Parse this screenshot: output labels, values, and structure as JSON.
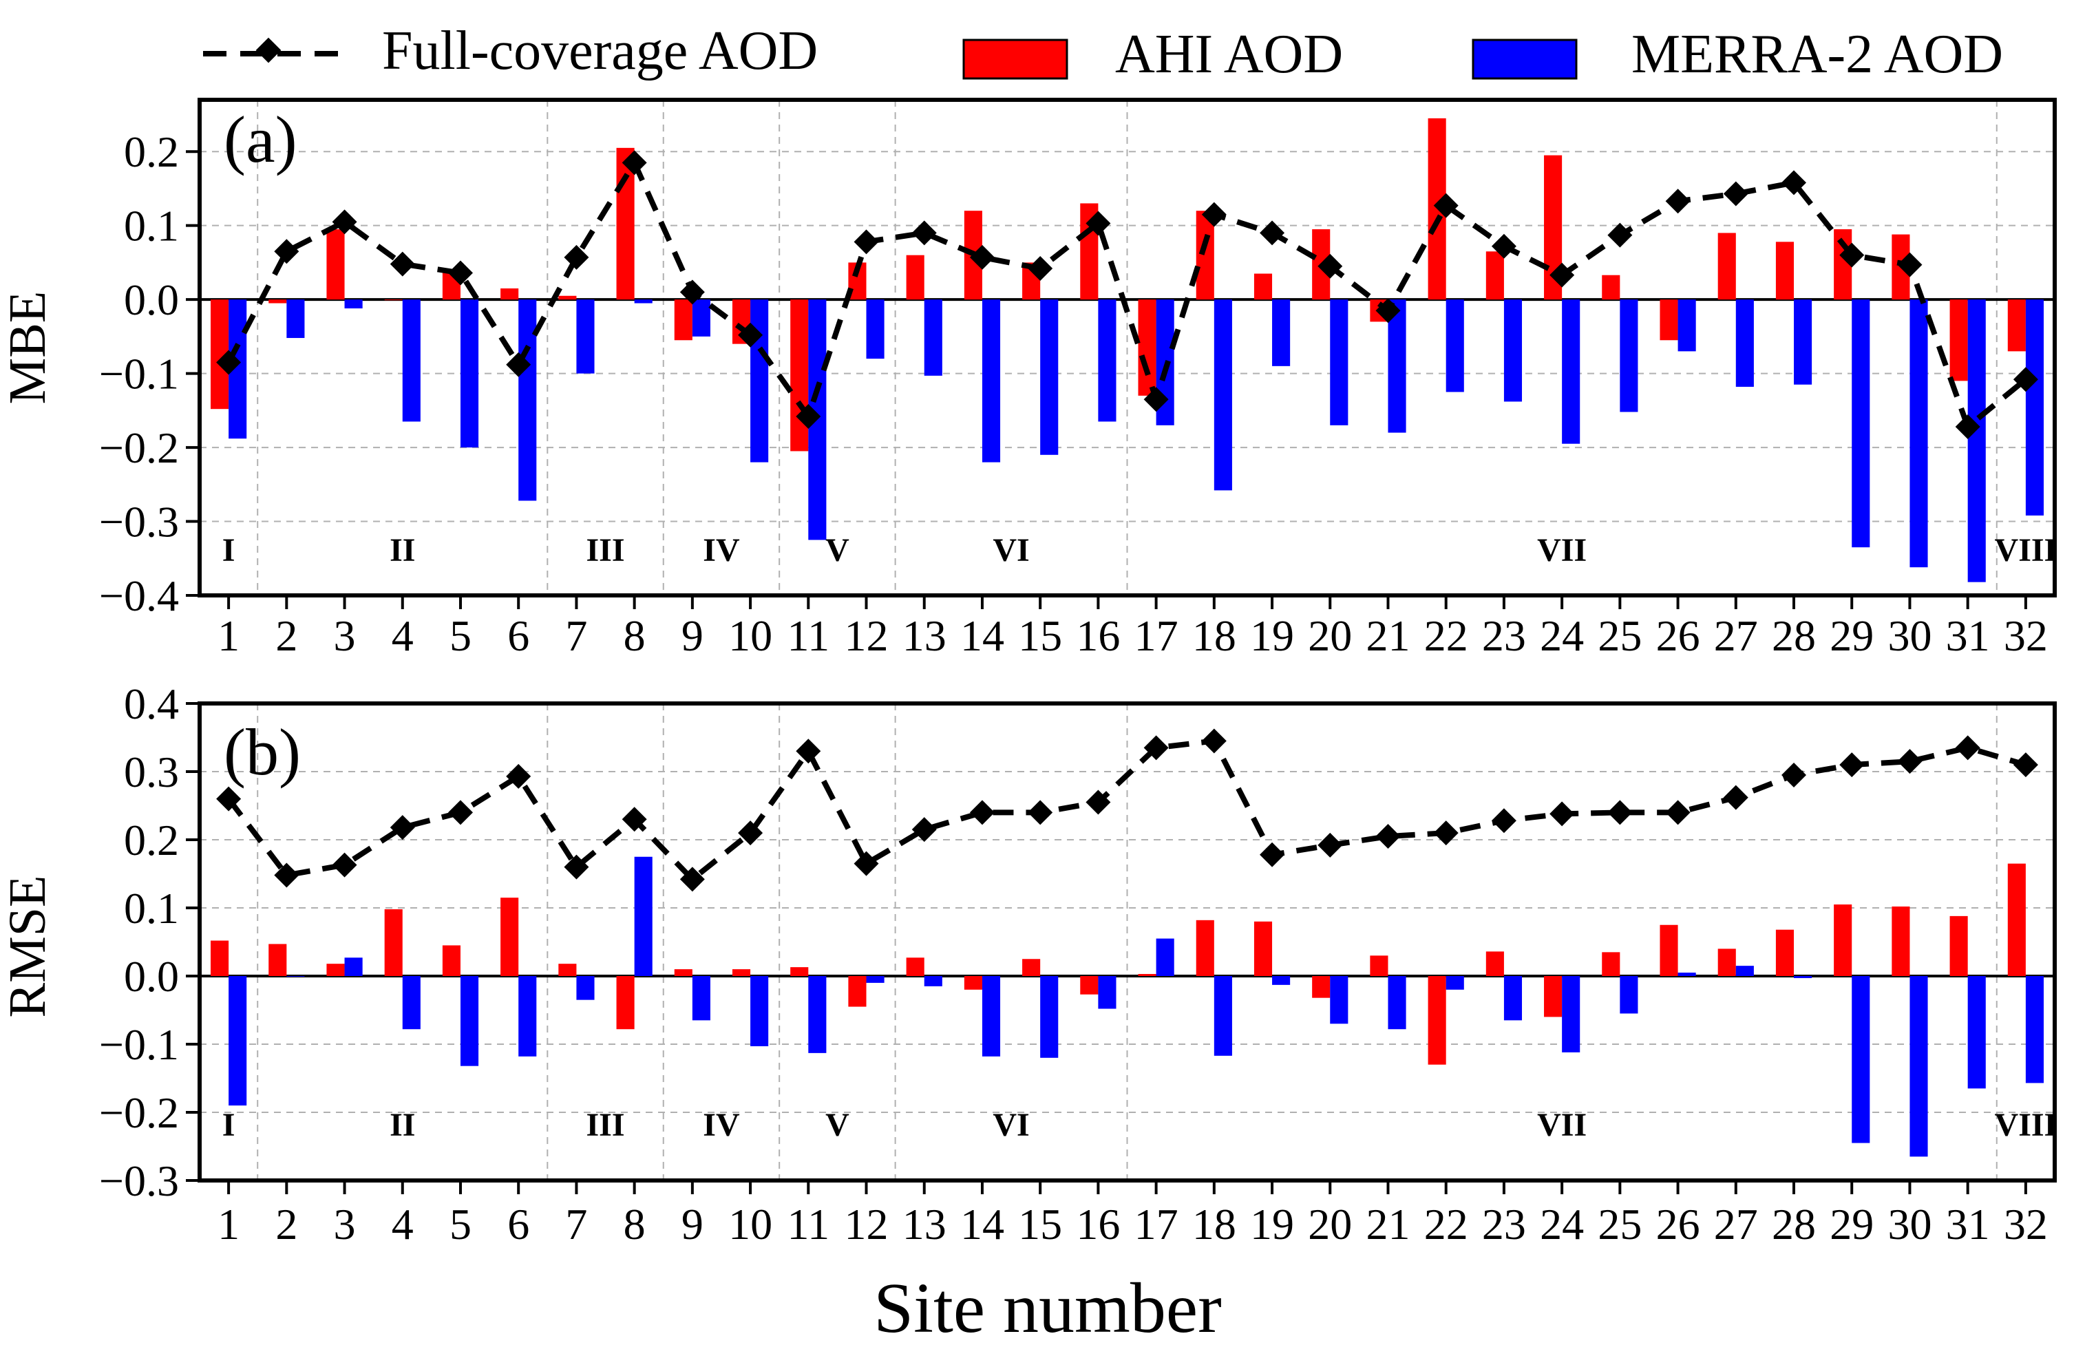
{
  "legend": {
    "line_label": "Full-coverage AOD",
    "bar1_label": "AHI AOD",
    "bar2_label": "MERRA-2 AOD"
  },
  "colors": {
    "ahi": "#ff0000",
    "merra": "#0000ff",
    "line": "#000000"
  },
  "xtitle": "Site number",
  "chart_data": [
    {
      "type": "bar",
      "panel": "(a)",
      "ylabel": "MBE",
      "xlabel": "Site number",
      "ylim": [
        -0.4,
        0.27
      ],
      "yticks": [
        -0.4,
        -0.3,
        -0.2,
        -0.1,
        0.0,
        0.1,
        0.2
      ],
      "ytick_labels": [
        "−0.4",
        "−0.3",
        "−0.2",
        "−0.1",
        "0.0",
        "0.1",
        "0.2"
      ],
      "categories": [
        "1",
        "2",
        "3",
        "4",
        "5",
        "6",
        "7",
        "8",
        "9",
        "10",
        "11",
        "12",
        "13",
        "14",
        "15",
        "16",
        "17",
        "18",
        "19",
        "20",
        "21",
        "22",
        "23",
        "24",
        "25",
        "26",
        "27",
        "28",
        "29",
        "30",
        "31",
        "32"
      ],
      "series": [
        {
          "name": "AHI AOD",
          "kind": "bar",
          "values": [
            -0.148,
            -0.005,
            0.095,
            0.0,
            0.038,
            0.015,
            0.005,
            0.205,
            -0.055,
            -0.06,
            -0.205,
            0.05,
            0.06,
            0.12,
            0.05,
            0.13,
            -0.13,
            0.12,
            0.035,
            0.095,
            -0.03,
            0.245,
            0.065,
            0.195,
            0.033,
            -0.055,
            0.09,
            0.078,
            0.095,
            0.088,
            -0.11,
            -0.07
          ]
        },
        {
          "name": "MERRA-2 AOD",
          "kind": "bar",
          "values": [
            -0.188,
            -0.052,
            -0.012,
            -0.165,
            -0.2,
            -0.272,
            -0.1,
            -0.005,
            -0.05,
            -0.22,
            -0.325,
            -0.08,
            -0.103,
            -0.22,
            -0.21,
            -0.165,
            -0.17,
            -0.258,
            -0.09,
            -0.17,
            -0.18,
            -0.125,
            -0.138,
            -0.195,
            -0.152,
            -0.07,
            -0.118,
            -0.115,
            -0.335,
            -0.362,
            -0.382,
            -0.292
          ]
        },
        {
          "name": "Full-coverage AOD",
          "kind": "line",
          "values": [
            -0.085,
            0.065,
            0.105,
            0.048,
            0.036,
            -0.088,
            0.057,
            0.185,
            0.01,
            -0.048,
            -0.158,
            0.078,
            0.09,
            0.057,
            0.042,
            0.103,
            -0.135,
            0.115,
            0.09,
            0.045,
            -0.015,
            0.127,
            0.072,
            0.033,
            0.087,
            0.133,
            0.143,
            0.158,
            0.06,
            0.047,
            -0.172,
            -0.108
          ]
        }
      ],
      "regions": [
        {
          "label": "I",
          "start": 1,
          "end": 1
        },
        {
          "label": "II",
          "start": 2,
          "end": 6
        },
        {
          "label": "III",
          "start": 7,
          "end": 8
        },
        {
          "label": "IV",
          "start": 9,
          "end": 10
        },
        {
          "label": "V",
          "start": 11,
          "end": 12
        },
        {
          "label": "VI",
          "start": 13,
          "end": 16
        },
        {
          "label": "VII",
          "start": 17,
          "end": 31
        },
        {
          "label": "VIII",
          "start": 32,
          "end": 32
        }
      ]
    },
    {
      "type": "bar",
      "panel": "(b)",
      "ylabel": "RMSE",
      "xlabel": "Site number",
      "ylim": [
        -0.3,
        0.4
      ],
      "yticks": [
        -0.3,
        -0.2,
        -0.1,
        0.0,
        0.1,
        0.2,
        0.3,
        0.4
      ],
      "ytick_labels": [
        "−0.3",
        "−0.2",
        "−0.1",
        "0.0",
        "0.1",
        "0.2",
        "0.3",
        "0.4"
      ],
      "categories": [
        "1",
        "2",
        "3",
        "4",
        "5",
        "6",
        "7",
        "8",
        "9",
        "10",
        "11",
        "12",
        "13",
        "14",
        "15",
        "16",
        "17",
        "18",
        "19",
        "20",
        "21",
        "22",
        "23",
        "24",
        "25",
        "26",
        "27",
        "28",
        "29",
        "30",
        "31",
        "32"
      ],
      "series": [
        {
          "name": "AHI AOD",
          "kind": "bar",
          "values": [
            0.052,
            0.047,
            0.018,
            0.098,
            0.045,
            0.115,
            0.018,
            -0.078,
            0.01,
            0.01,
            0.013,
            -0.045,
            0.027,
            -0.02,
            0.025,
            -0.027,
            0.003,
            0.082,
            0.08,
            -0.032,
            0.03,
            -0.13,
            0.036,
            -0.06,
            0.035,
            0.075,
            0.04,
            0.068,
            0.105,
            0.102,
            0.088,
            0.165
          ]
        },
        {
          "name": "MERRA-2 AOD",
          "kind": "bar",
          "values": [
            -0.19,
            0.0,
            0.027,
            -0.078,
            -0.132,
            -0.118,
            -0.035,
            0.175,
            -0.065,
            -0.103,
            -0.113,
            -0.01,
            -0.015,
            -0.118,
            -0.12,
            -0.048,
            0.055,
            -0.117,
            -0.013,
            -0.07,
            -0.078,
            -0.02,
            -0.065,
            -0.112,
            -0.055,
            0.005,
            0.015,
            -0.003,
            -0.245,
            -0.265,
            -0.165,
            -0.157
          ]
        },
        {
          "name": "Full-coverage AOD",
          "kind": "line",
          "values": [
            0.26,
            0.148,
            0.163,
            0.218,
            0.24,
            0.293,
            0.16,
            0.23,
            0.142,
            0.21,
            0.33,
            0.165,
            0.215,
            0.24,
            0.24,
            0.255,
            0.335,
            0.345,
            0.178,
            0.192,
            0.205,
            0.21,
            0.228,
            0.238,
            0.24,
            0.24,
            0.262,
            0.295,
            0.31,
            0.315,
            0.335,
            0.31
          ]
        }
      ],
      "regions": [
        {
          "label": "I",
          "start": 1,
          "end": 1
        },
        {
          "label": "II",
          "start": 2,
          "end": 6
        },
        {
          "label": "III",
          "start": 7,
          "end": 8
        },
        {
          "label": "IV",
          "start": 9,
          "end": 10
        },
        {
          "label": "V",
          "start": 11,
          "end": 12
        },
        {
          "label": "VI",
          "start": 13,
          "end": 16
        },
        {
          "label": "VII",
          "start": 17,
          "end": 31
        },
        {
          "label": "VIII",
          "start": 32,
          "end": 32
        }
      ]
    }
  ]
}
